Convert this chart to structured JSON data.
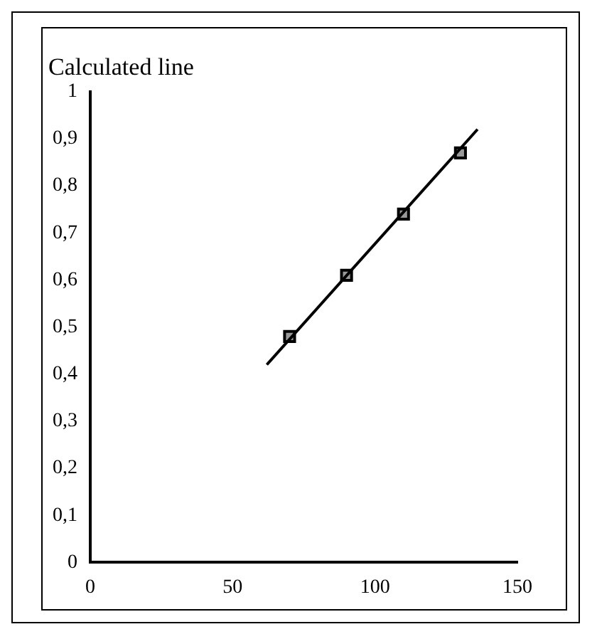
{
  "chart_data": {
    "type": "scatter",
    "title": "Calculated line",
    "grid": false,
    "legend": false,
    "xlim": [
      0,
      150
    ],
    "xticks": [
      0,
      50,
      100,
      150
    ],
    "ylim": [
      0,
      1
    ],
    "yticks": [
      0,
      {
        "value": 0.1,
        "label": "0,1"
      },
      {
        "value": 0.2,
        "label": "0,2"
      },
      {
        "value": 0.3,
        "label": "0,3"
      },
      {
        "value": 0.4,
        "label": "0,4"
      },
      {
        "value": 0.5,
        "label": "0,5"
      },
      {
        "value": 0.6,
        "label": "0,6"
      },
      {
        "value": 0.7,
        "label": "0,7"
      },
      {
        "value": 0.8,
        "label": "0,8"
      },
      {
        "value": 0.9,
        "label": "0,9"
      },
      1
    ],
    "series": [
      {
        "type": "line",
        "color": "#000000",
        "marker": "none",
        "line_style": "solid",
        "x": [
          62,
          136
        ],
        "values": [
          0.42,
          0.92
        ]
      },
      {
        "type": "scatter",
        "color": "#999999",
        "marker": "square",
        "x": [
          70,
          90,
          110,
          130
        ],
        "values": [
          0.48,
          0.61,
          0.74,
          0.87
        ]
      }
    ]
  }
}
